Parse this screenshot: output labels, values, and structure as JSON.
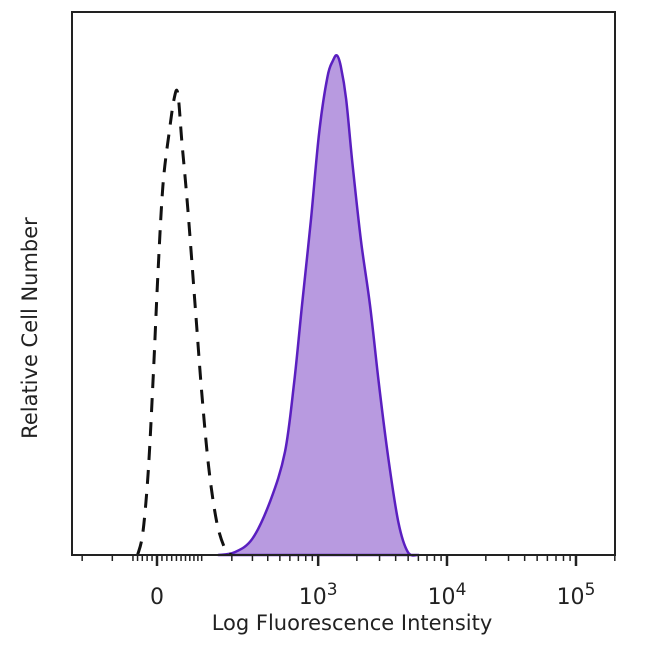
{
  "chart_data": {
    "type": "area",
    "title": "",
    "xlabel": "Log Fluorescence Intensity",
    "ylabel": "Relative Cell Number",
    "x_scale": "biexponential",
    "xlim": [
      -245,
      200000
    ],
    "ylim": [
      0,
      100
    ],
    "grid": false,
    "x_ticks": [
      {
        "value": 0,
        "label": "0",
        "sup": ""
      },
      {
        "value": 1000,
        "label": "10",
        "sup": "3"
      },
      {
        "value": 10000,
        "label": "10",
        "sup": "4"
      },
      {
        "value": 100000,
        "label": "10",
        "sup": "5"
      }
    ],
    "series": [
      {
        "style": "dashed",
        "color": "#111111",
        "filled": false,
        "x": [
          -40,
          -29,
          -18,
          -8,
          2,
          12,
          25,
          35,
          43,
          52,
          65,
          83,
          100,
          120,
          145,
          175,
          200
        ],
        "y": [
          0,
          4,
          15,
          32,
          52,
          68,
          78,
          84,
          85,
          76,
          64,
          46,
          30,
          16,
          6,
          1,
          0
        ]
      },
      {
        "style": "solid",
        "color": "#5a1fc0",
        "fill": "#b89ae0",
        "filled": true,
        "x": [
          150,
          211,
          300,
          420,
          549,
          650,
          748,
          880,
          1020,
          1180,
          1300,
          1400,
          1500,
          1650,
          1850,
          2150,
          2530,
          2950,
          3500,
          4200,
          4985,
          6000
        ],
        "y": [
          0,
          0.5,
          3,
          10,
          19,
          32,
          46,
          62,
          78,
          88,
          91,
          92,
          90,
          84,
          72,
          58,
          46,
          32,
          18,
          6,
          0.5,
          0
        ]
      }
    ]
  }
}
